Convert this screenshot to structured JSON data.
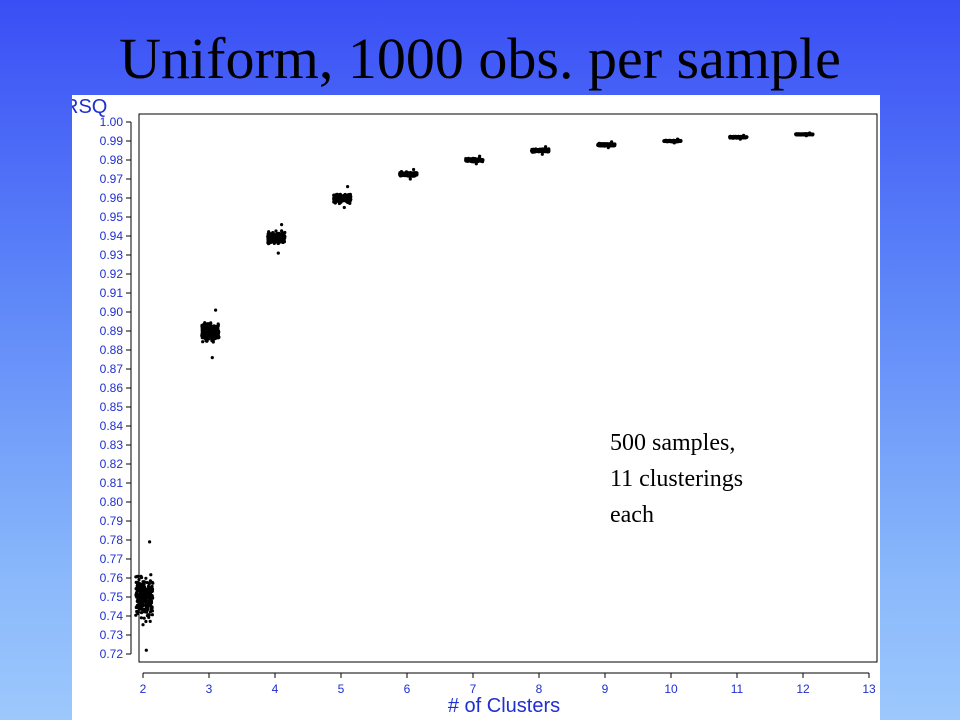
{
  "slide": {
    "title": "Uniform, 1000 obs. per sample"
  },
  "annotation": {
    "line1": "500 samples,",
    "line2": "11 clusterings",
    "line3": "each"
  },
  "colors": {
    "axis_label": "#1f2fd0",
    "points": "#000000",
    "frame": "#000000"
  },
  "chart_data": {
    "type": "scatter",
    "title": "",
    "xlabel": "# of Clusters",
    "ylabel": "RSQ",
    "xlim": [
      2,
      13
    ],
    "ylim": [
      0.72,
      1.0
    ],
    "xticks": [
      "2",
      "3",
      "4",
      "5",
      "6",
      "7",
      "8",
      "9",
      "10",
      "11",
      "12",
      "13"
    ],
    "yticks": [
      "0.72",
      "0.73",
      "0.74",
      "0.75",
      "0.76",
      "0.77",
      "0.78",
      "0.79",
      "0.80",
      "0.81",
      "0.82",
      "0.83",
      "0.84",
      "0.85",
      "0.86",
      "0.87",
      "0.88",
      "0.89",
      "0.90",
      "0.91",
      "0.92",
      "0.93",
      "0.94",
      "0.95",
      "0.96",
      "0.97",
      "0.98",
      "0.99",
      "1.00"
    ],
    "grid": false,
    "groups": [
      {
        "clusters": 2,
        "center": 0.75,
        "min": 0.722,
        "max": 0.779
      },
      {
        "clusters": 3,
        "center": 0.889,
        "min": 0.876,
        "max": 0.901
      },
      {
        "clusters": 4,
        "center": 0.939,
        "min": 0.931,
        "max": 0.946
      },
      {
        "clusters": 5,
        "center": 0.96,
        "min": 0.955,
        "max": 0.966
      },
      {
        "clusters": 6,
        "center": 0.9725,
        "min": 0.97,
        "max": 0.975
      },
      {
        "clusters": 7,
        "center": 0.98,
        "min": 0.978,
        "max": 0.982
      },
      {
        "clusters": 8,
        "center": 0.985,
        "min": 0.983,
        "max": 0.987
      },
      {
        "clusters": 9,
        "center": 0.988,
        "min": 0.9865,
        "max": 0.9895
      },
      {
        "clusters": 10,
        "center": 0.99,
        "min": 0.989,
        "max": 0.991
      },
      {
        "clusters": 11,
        "center": 0.992,
        "min": 0.991,
        "max": 0.993
      },
      {
        "clusters": 12,
        "center": 0.9935,
        "min": 0.9928,
        "max": 0.9942
      }
    ]
  }
}
